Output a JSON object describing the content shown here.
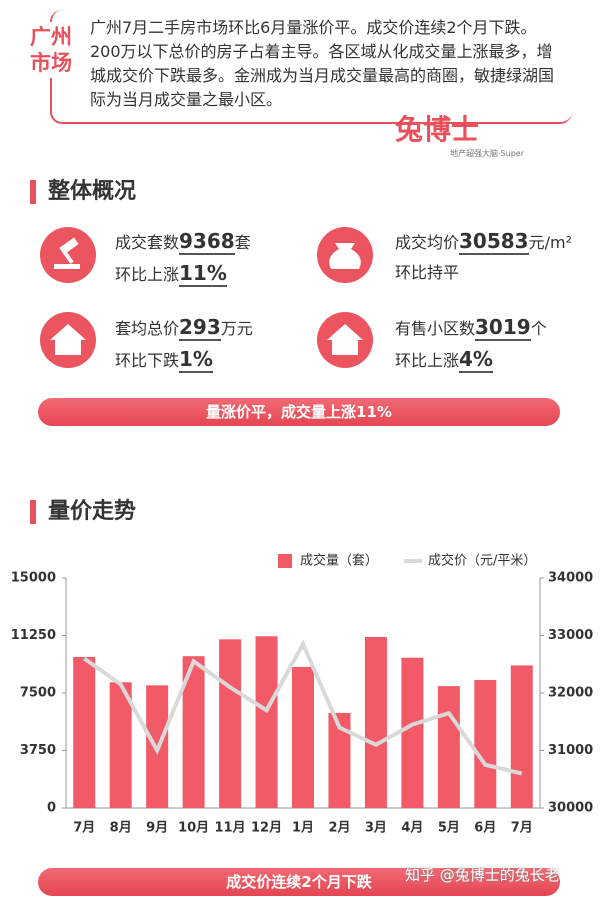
{
  "header": {
    "city": [
      "广州",
      "市场"
    ],
    "text": "广州7月二手房市场环比6月量涨价平。成交价连续2个月下跌。200万以下总价的房子占着主导。各区域从化成交量上涨最多，增城成交价下跌最多。金洲成为当月成交量最高的商圈，敏捷绿湖国际为当月成交量之最小区。"
  },
  "logo": {
    "name": "兔博士",
    "tagline": "地产超强大脑·Super"
  },
  "overview": {
    "title": "整体概况",
    "stats": [
      {
        "label": "成交套数",
        "value": "9368",
        "unit": "套",
        "change_label": "环比上涨",
        "change": "11%",
        "tone": "up"
      },
      {
        "label": "成交均价",
        "value": "30583",
        "unit": "元/m²",
        "change_label": "环比持平",
        "change": null,
        "tone": "flat"
      },
      {
        "label": "套均总价",
        "value": "293",
        "unit": "万元",
        "change_label": "环比下跌",
        "change": "1%",
        "tone": "down"
      },
      {
        "label": "有售小区数",
        "value": "3019",
        "unit": "个",
        "change_label": "环比上涨",
        "change": "4%",
        "tone": "up"
      }
    ]
  },
  "banner1": "量涨价平，成交量上涨11%",
  "trend_title": "量价走势",
  "chart_data": {
    "type": "bar_line",
    "categories": [
      "7月",
      "8月",
      "9月",
      "10月",
      "11月",
      "12月",
      "1月",
      "2月",
      "3月",
      "4月",
      "5月",
      "6月",
      "7月"
    ],
    "series": [
      {
        "name": "成交量（套）",
        "color": "#f25a68",
        "type": "bar",
        "values": [
          9850,
          8200,
          8000,
          9900,
          11000,
          11200,
          9200,
          6200,
          11150,
          9800,
          7950,
          8350,
          9300
        ]
      },
      {
        "name": "成交价（元/平米）",
        "color": "#d9d9d9",
        "type": "line",
        "axis": "y2",
        "values": [
          32600,
          32150,
          31000,
          32550,
          32100,
          31700,
          32850,
          31400,
          31100,
          31450,
          31650,
          30750,
          30600
        ]
      }
    ],
    "ylim": [
      0,
      15000
    ],
    "yticks": [
      0,
      3750,
      7500,
      11250,
      15000
    ],
    "y2lim": [
      30000,
      34000
    ],
    "y2ticks": [
      30000,
      31000,
      32000,
      33000,
      34000
    ],
    "grid": false
  },
  "banner2": "成交价连续2个月下跌",
  "watermark": "知乎 @兔博士的兔长老"
}
